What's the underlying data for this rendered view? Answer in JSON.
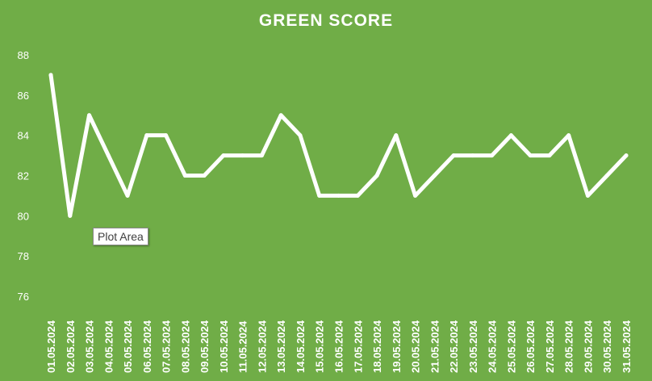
{
  "chart_data": {
    "type": "line",
    "title": "GREEN SCORE",
    "x": [
      "01.05.2024",
      "02.05.2024",
      "03.05.2024",
      "04.05.2024",
      "05.05.2024",
      "06.05.2024",
      "07.05.2024",
      "08.05.2024",
      "09.05.2024",
      "10.05.2024",
      "11.05.2024",
      "12.05.2024",
      "13.05.2024",
      "14.05.2024",
      "15.05.2024",
      "16.05.2024",
      "17.05.2024",
      "18.05.2024",
      "19.05.2024",
      "20.05.2024",
      "21.05.2024",
      "22.05.2024",
      "23.05.2024",
      "24.05.2024",
      "25.05.2024",
      "26.05.2024",
      "27.05.2024",
      "28.05.2024",
      "29.05.2024",
      "30.05.2024",
      "31.05.2024"
    ],
    "series": [
      {
        "values": [
          87,
          80,
          85,
          83,
          81,
          84,
          84,
          82,
          82,
          83,
          83,
          83,
          85,
          84,
          81,
          81,
          81,
          82,
          84,
          81,
          82,
          83,
          83,
          83,
          84,
          83,
          83,
          84,
          81,
          82,
          83
        ]
      }
    ],
    "ylim": [
      76,
      88
    ],
    "yticks": [
      76,
      78,
      80,
      82,
      84,
      86,
      88
    ],
    "drop_lines": true,
    "grid": false,
    "colors": {
      "background": "#70ad47",
      "line": "#ffffff",
      "text": "#ffffff"
    }
  },
  "tooltip": {
    "text": "Plot Area"
  }
}
